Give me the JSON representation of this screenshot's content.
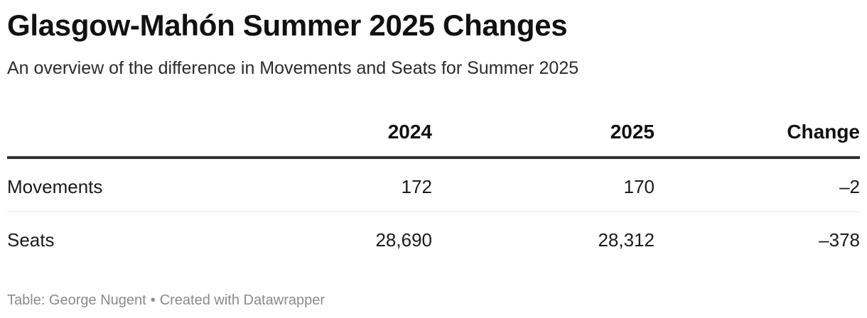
{
  "title": "Glasgow-Mahón Summer 2025 Changes",
  "subtitle": "An overview of the difference in Movements and Seats for Summer 2025",
  "chart_data": {
    "type": "table",
    "title": "Glasgow-Mahón Summer 2025 Changes",
    "subtitle": "An overview of the difference in Movements and Seats for Summer 2025",
    "columns": [
      "",
      "2024",
      "2025",
      "Change"
    ],
    "rows": [
      {
        "label": "Movements",
        "cells": [
          "172",
          "170",
          "–2"
        ]
      },
      {
        "label": "Seats",
        "cells": [
          "28,690",
          "28,312",
          "–378"
        ]
      }
    ],
    "values": [
      {
        "metric": "Movements",
        "2024": 172,
        "2025": 170,
        "change": -2
      },
      {
        "metric": "Seats",
        "2024": 28690,
        "2025": 28312,
        "change": -378
      }
    ]
  },
  "footer": {
    "source": "Table: George Nugent",
    "separator": "•",
    "credit": "Created with Datawrapper"
  }
}
